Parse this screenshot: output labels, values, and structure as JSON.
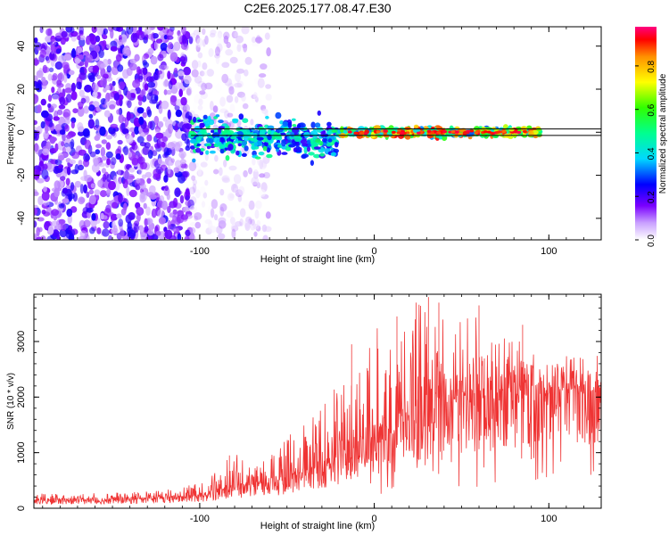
{
  "figure": {
    "title": "C2E6.2025.177.08.47.E30"
  },
  "chart_data": [
    {
      "type": "heatmap",
      "xlabel": "Height of straight line (km)",
      "ylabel": "Frequency (Hz)",
      "xlim": [
        -195,
        130
      ],
      "ylim": [
        -50,
        49
      ],
      "x_ticks": [
        -100,
        0,
        100
      ],
      "x_tick_labels": [
        "-100",
        "0",
        "100"
      ],
      "y_ticks": [
        -40,
        -20,
        0,
        20,
        40
      ],
      "y_tick_labels": [
        "-40",
        "-20",
        "0",
        "20",
        "40"
      ],
      "grid": false,
      "colorbar": {
        "label": "Normalized spectral amplitude",
        "range": [
          0,
          0.98
        ],
        "ticks": [
          0.0,
          0.2,
          0.4,
          0.6,
          0.8
        ],
        "tick_labels": [
          "0.0",
          "0.2",
          "0.4",
          "0.6",
          "0.8"
        ]
      },
      "reference_lines_hz": [
        1.5,
        -1.5
      ],
      "regions": [
        {
          "x_range": [
            -195,
            -105
          ],
          "freq_range": [
            -50,
            49
          ],
          "amplitude": [
            0.05,
            0.25
          ],
          "density": "high"
        },
        {
          "x_range": [
            -105,
            -60
          ],
          "freq_range": [
            -50,
            49
          ],
          "amplitude": [
            0.0,
            0.12
          ],
          "density": "low"
        },
        {
          "x_range": [
            -105,
            -20
          ],
          "freq_range": [
            -15,
            10
          ],
          "amplitude": [
            0.2,
            0.55
          ],
          "density": "high"
        },
        {
          "x_range": [
            -20,
            95
          ],
          "freq_range": [
            -3,
            3
          ],
          "amplitude": [
            0.3,
            0.95
          ],
          "density": "high"
        }
      ]
    },
    {
      "type": "line",
      "xlabel": "Height of straight line (km)",
      "ylabel": "SNR (10 * v/v)",
      "xlim": [
        -195,
        130
      ],
      "ylim": [
        0,
        3850
      ],
      "x_ticks": [
        -100,
        0,
        100
      ],
      "x_tick_labels": [
        "-100",
        "0",
        "100"
      ],
      "y_ticks": [
        0,
        1000,
        2000,
        3000
      ],
      "y_tick_labels": [
        "0",
        "1000",
        "2000",
        "3000"
      ],
      "grid": false,
      "line_color": "#ef3434",
      "envelope": {
        "x": [
          -195,
          -150,
          -120,
          -100,
          -90,
          -80,
          -70,
          -60,
          -50,
          -40,
          -30,
          -20,
          -15,
          -10,
          -5,
          0,
          10,
          20,
          25,
          30,
          40,
          50,
          60,
          70,
          80,
          90,
          100,
          110,
          120,
          130
        ],
        "base": [
          130,
          140,
          160,
          200,
          260,
          330,
          330,
          400,
          450,
          550,
          650,
          750,
          850,
          950,
          1050,
          1150,
          1300,
          1450,
          1550,
          1650,
          1750,
          1800,
          1850,
          1900,
          1950,
          2000,
          2000,
          2050,
          2050,
          2100
        ],
        "peak": [
          260,
          280,
          330,
          450,
          800,
          1000,
          750,
          950,
          1300,
          1500,
          1800,
          2300,
          2800,
          3000,
          2800,
          3400,
          3400,
          3700,
          3800,
          3800,
          3700,
          3600,
          3600,
          3300,
          3200,
          2800,
          2600,
          2550,
          2500,
          2450
        ]
      },
      "spikes": [
        {
          "x": -83,
          "y": 950
        },
        {
          "x": -13,
          "y": 2950
        },
        {
          "x": 13,
          "y": 3450
        },
        {
          "x": 24,
          "y": 3700
        },
        {
          "x": 31,
          "y": 3800
        },
        {
          "x": 37,
          "y": 3700
        },
        {
          "x": 60,
          "y": 3650
        },
        {
          "x": 85,
          "y": 3300
        }
      ]
    }
  ]
}
